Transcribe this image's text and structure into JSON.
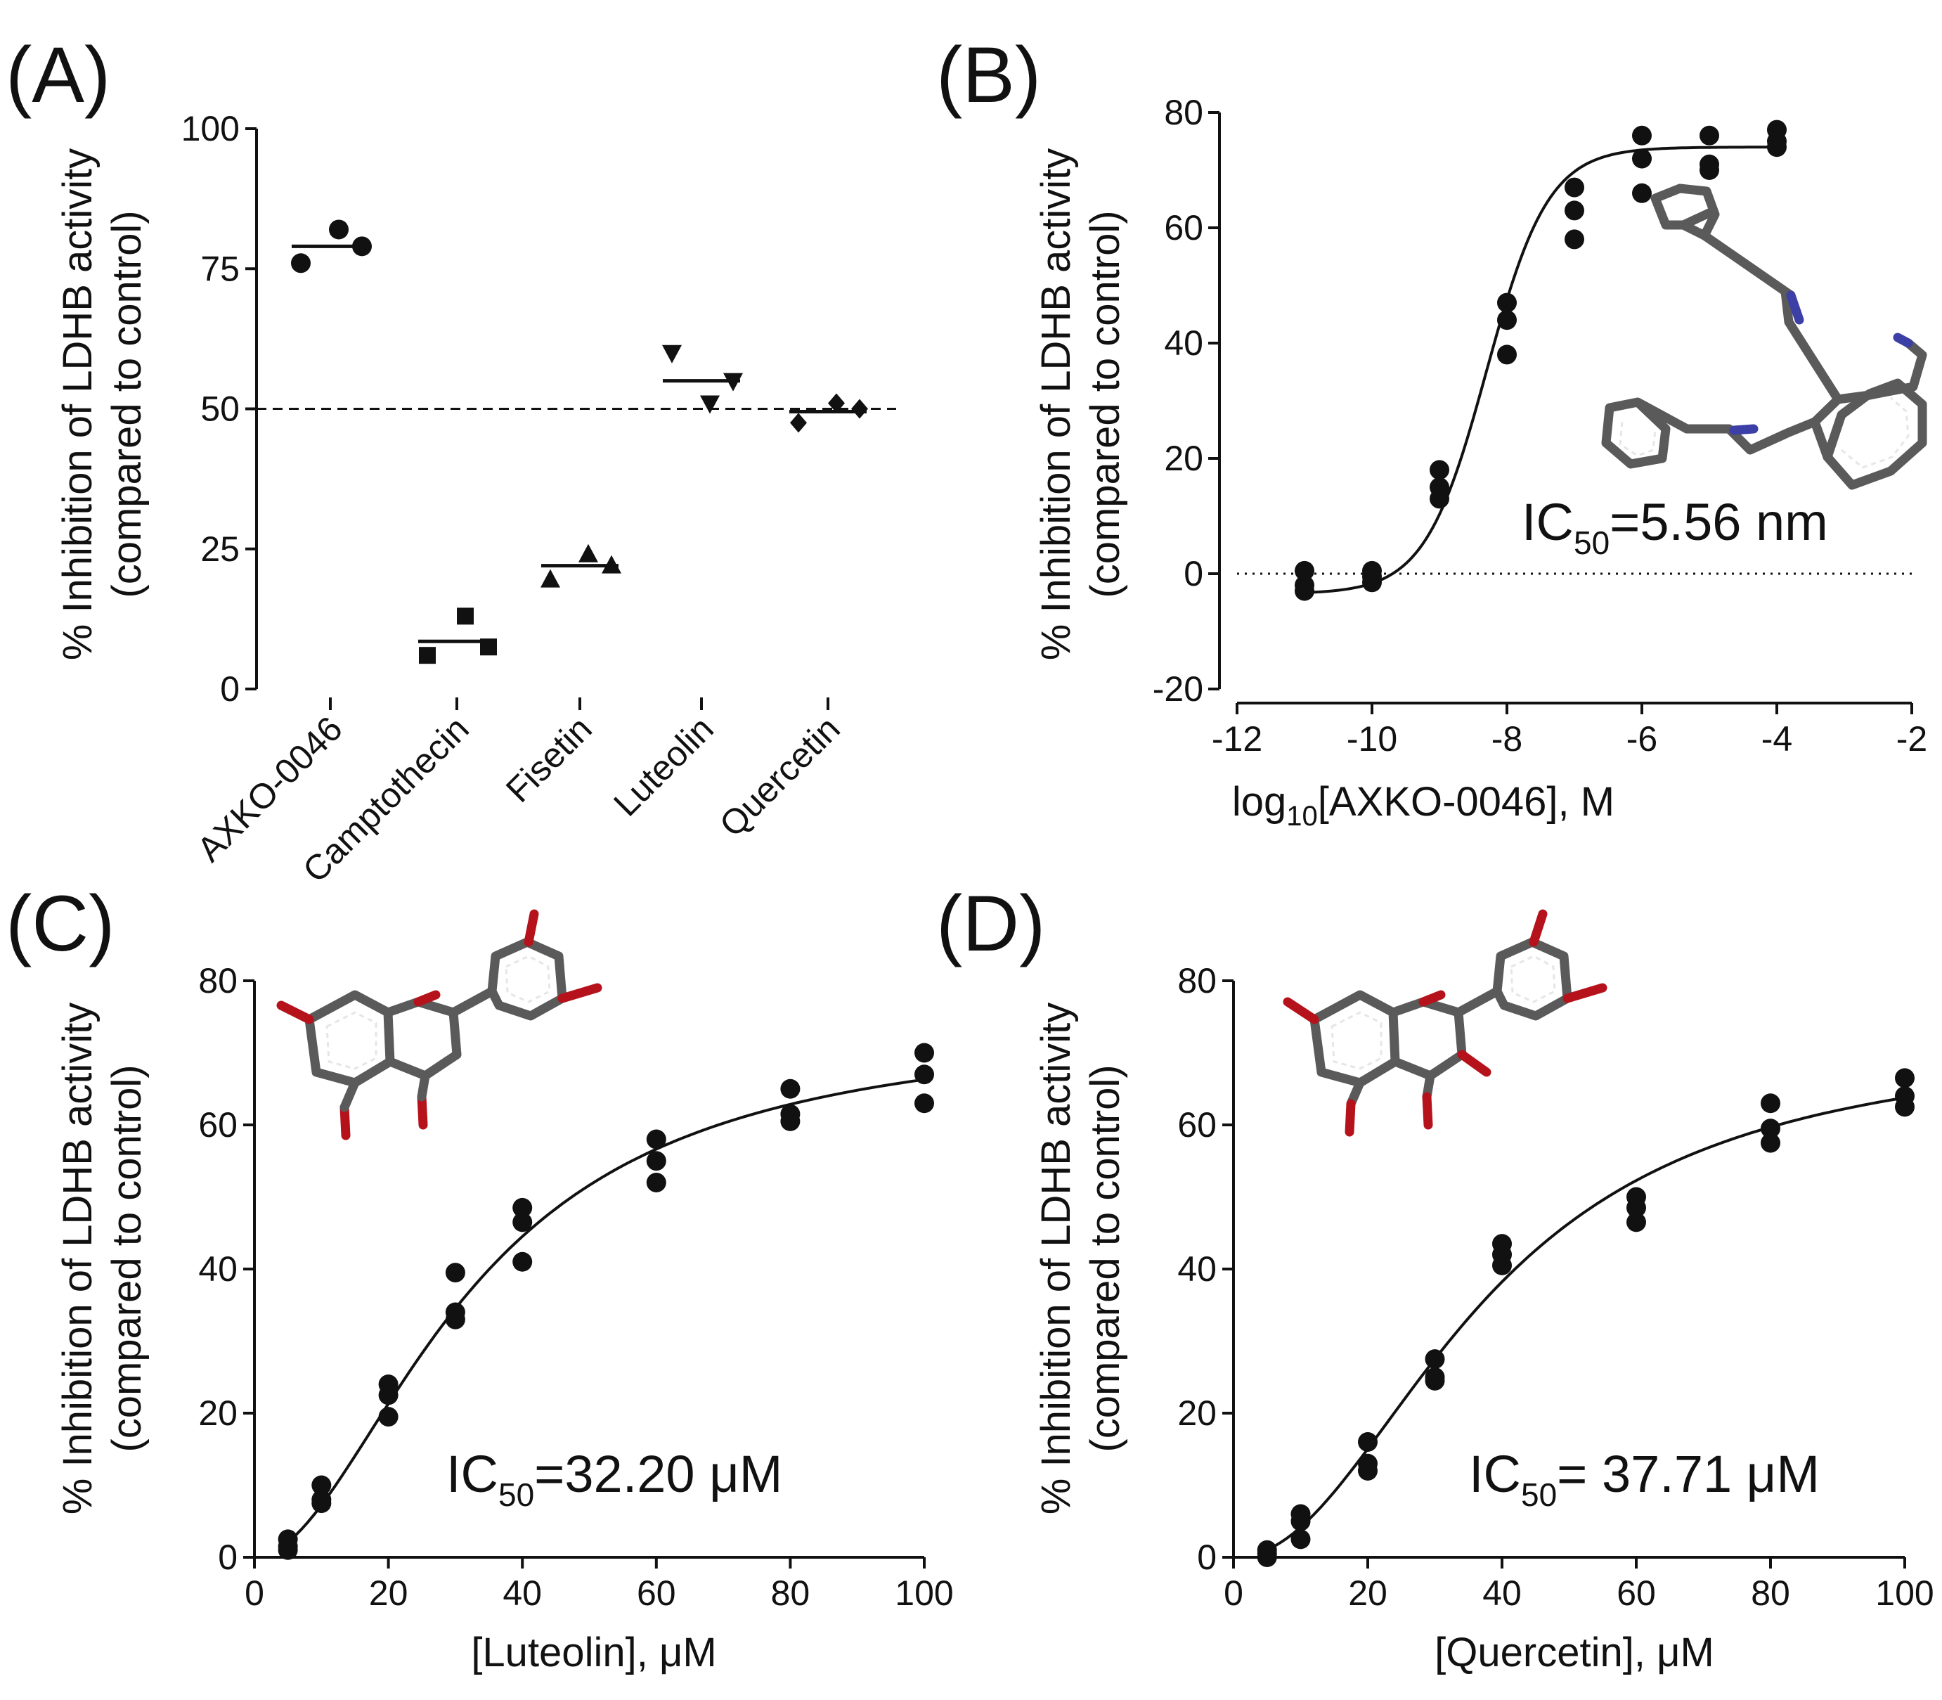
{
  "chart_data": [
    {
      "panel": "(A)",
      "type": "scatter",
      "title": "",
      "ylabel_line1": "% Inhibition of LDHB activity",
      "ylabel_line2": "(compared to control)",
      "xlabel": "",
      "ylim": [
        0,
        100
      ],
      "yticks": [
        0,
        25,
        50,
        75,
        100
      ],
      "reference_line": 50,
      "categories": [
        "AXKO-0046",
        "Camptothecin",
        "Fisetin",
        "Luteolin",
        "Quercetin"
      ],
      "series": [
        {
          "name": "AXKO-0046",
          "marker": "circle",
          "values": [
            76,
            82,
            79
          ],
          "mean": 79
        },
        {
          "name": "Camptothecin",
          "marker": "square",
          "values": [
            6,
            13,
            7.5
          ],
          "mean": 8.5
        },
        {
          "name": "Fisetin",
          "marker": "triangle-up",
          "values": [
            19.5,
            24,
            22
          ],
          "mean": 22
        },
        {
          "name": "Luteolin",
          "marker": "triangle-down",
          "values": [
            60,
            51,
            55
          ],
          "mean": 55
        },
        {
          "name": "Quercetin",
          "marker": "diamond",
          "values": [
            47.5,
            51,
            50
          ],
          "mean": 49.5
        }
      ]
    },
    {
      "panel": "(B)",
      "type": "scatter",
      "title": "",
      "ylabel_line1": "% Inhibition of LDHB  activity",
      "ylabel_line2": "(compared to control)",
      "xlabel_pre": "log",
      "xlabel_sub": "10",
      "xlabel_post": "[AXKO-0046], M",
      "xlim": [
        -12,
        -2
      ],
      "xticks": [
        -12,
        -10,
        -8,
        -6,
        -4,
        -2
      ],
      "ylim": [
        -20,
        80
      ],
      "yticks": [
        -20,
        0,
        20,
        40,
        60,
        80
      ],
      "reference_line": 0,
      "x": [
        -11,
        -11,
        -11,
        -10,
        -10,
        -10,
        -9,
        -9,
        -9,
        -8,
        -8,
        -8,
        -7,
        -7,
        -7,
        -6,
        -6,
        -6,
        -5,
        -5,
        -5,
        -4,
        -4,
        -4
      ],
      "y": [
        0.5,
        -2,
        -3,
        0.5,
        -0.5,
        -1.5,
        18,
        15,
        13,
        47,
        44,
        38,
        67,
        63,
        58,
        76,
        72,
        66,
        76,
        71,
        70,
        77,
        75,
        74
      ],
      "fit": {
        "model": "sigmoidal",
        "bottom": -3.5,
        "top": 74,
        "log_ic50": -8.3,
        "hill": 0.95
      },
      "annotation": {
        "pre": "IC",
        "sub": "50",
        "post": "=5.56 nm"
      }
    },
    {
      "panel": "(C)",
      "type": "scatter",
      "title": "",
      "ylabel_line1": "% Inhibition of LDHB  activity",
      "ylabel_line2": "(compared to control)",
      "xlabel": "[Luteolin], μM",
      "xlim": [
        0,
        100
      ],
      "xticks": [
        0,
        20,
        40,
        60,
        80,
        100
      ],
      "ylim": [
        0,
        80
      ],
      "yticks": [
        0,
        20,
        40,
        60,
        80
      ],
      "x": [
        5,
        5,
        5,
        10,
        10,
        10,
        20,
        20,
        20,
        30,
        30,
        30,
        40,
        40,
        40,
        60,
        60,
        60,
        80,
        80,
        80,
        100,
        100,
        100
      ],
      "y": [
        2.5,
        1.5,
        1,
        10,
        8,
        7.5,
        24,
        22.5,
        19.5,
        39.5,
        34,
        33,
        48.5,
        46.5,
        41,
        58,
        55,
        52,
        65,
        61.5,
        60.5,
        70,
        67,
        63
      ],
      "fit": {
        "model": "hill",
        "top": 74,
        "ic50": 32.2,
        "hill": 1.9
      },
      "annotation": {
        "pre": "IC",
        "sub": "50",
        "post": "=32.20 μM"
      }
    },
    {
      "panel": "(D)",
      "type": "scatter",
      "title": "",
      "ylabel_line1": "% Inhibition of LDHB  activity",
      "ylabel_line2": "(compared to control)",
      "xlabel": "[Quercetin], μM",
      "xlim": [
        0,
        100
      ],
      "xticks": [
        0,
        20,
        40,
        60,
        80,
        100
      ],
      "ylim": [
        0,
        80
      ],
      "yticks": [
        0,
        20,
        40,
        60,
        80
      ],
      "x": [
        5,
        5,
        5,
        10,
        10,
        10,
        20,
        20,
        20,
        30,
        30,
        30,
        40,
        40,
        40,
        60,
        60,
        60,
        80,
        80,
        80,
        100,
        100,
        100
      ],
      "y": [
        1,
        0.5,
        0,
        6,
        5,
        2.5,
        16,
        13,
        12,
        27.5,
        25,
        24.5,
        43.5,
        42,
        40.5,
        50,
        48.5,
        46.5,
        63,
        59.5,
        57.5,
        66.5,
        64,
        62.5
      ],
      "fit": {
        "model": "hill",
        "top": 72,
        "ic50": 37.71,
        "hill": 2.1
      },
      "annotation": {
        "pre": "IC",
        "sub": "50",
        "post": "= 37.71 μM"
      }
    }
  ]
}
